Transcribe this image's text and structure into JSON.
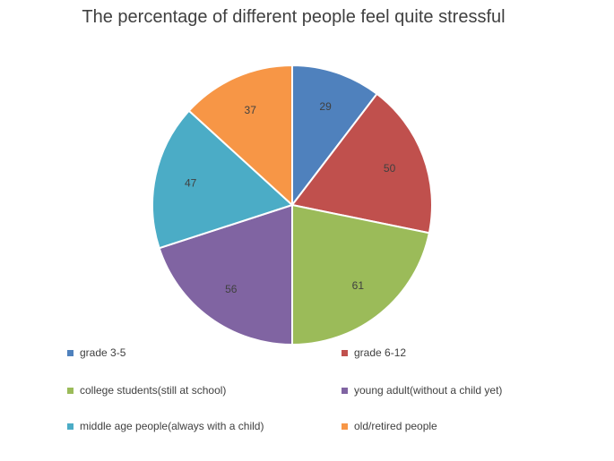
{
  "chart_data": {
    "type": "pie",
    "title": "The percentage of different people feel quite stressful",
    "categories": [
      "grade 3-5",
      "grade 6-12",
      "college students(still at school)",
      "young adult(without a child yet)",
      "middle age people(always with a child)",
      "old/retired people"
    ],
    "values": [
      29,
      50,
      61,
      56,
      47,
      37
    ],
    "data_labels": [
      "29",
      "50",
      "61",
      "56",
      "47",
      "37"
    ],
    "colors": [
      "#4F81BD",
      "#C0504D",
      "#9BBB59",
      "#8064A2",
      "#4BACC6",
      "#F79646"
    ],
    "legend_position": "bottom",
    "start_angle_degrees": 0,
    "direction": "clockwise"
  }
}
